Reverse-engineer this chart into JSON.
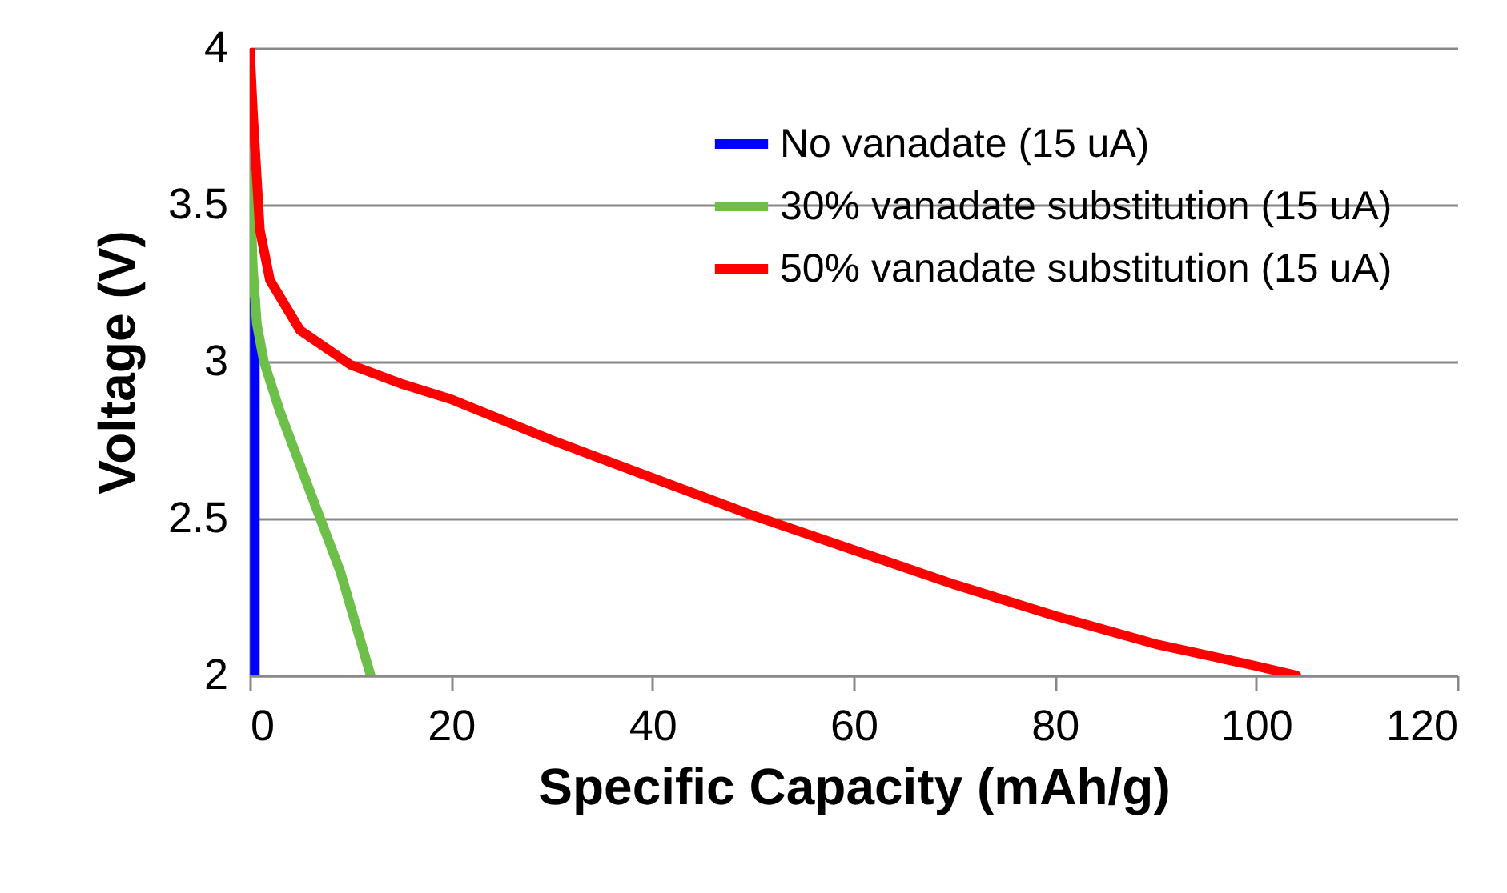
{
  "chart_data": {
    "type": "line",
    "xlabel": "Specific Capacity (mAh/g)",
    "ylabel": "Voltage (V)",
    "xlim": [
      0,
      120
    ],
    "xticks": [
      0,
      20,
      40,
      60,
      80,
      100,
      120
    ],
    "ylim": [
      2,
      4
    ],
    "yticks": [
      2,
      2.5,
      3,
      3.5,
      4
    ],
    "grid": "y",
    "legend": "top right",
    "line_style": "solid",
    "marker": "none",
    "series": [
      {
        "name": "No vanadate (15 uA)",
        "color": "#0000ff",
        "x": [
          0.5,
          0.5
        ],
        "values": [
          3.2,
          2.0
        ]
      },
      {
        "name": "30% vanadate substitution (15 uA)",
        "color": "#6cc04a",
        "x": [
          0,
          0.3,
          0.7,
          1.4,
          3,
          5,
          7,
          9,
          12
        ],
        "values": [
          3.59,
          3.3,
          3.12,
          3.0,
          2.84,
          2.67,
          2.5,
          2.33,
          2.0
        ]
      },
      {
        "name": "50% vanadate substitution (15 uA)",
        "color": "#ff0000",
        "x": [
          0,
          0.3,
          1,
          2,
          5,
          10,
          15,
          20,
          30,
          40,
          50,
          60,
          70,
          80,
          90,
          100,
          104
        ],
        "values": [
          4.0,
          3.8,
          3.42,
          3.26,
          3.1,
          2.99,
          2.93,
          2.88,
          2.75,
          2.63,
          2.51,
          2.4,
          2.29,
          2.19,
          2.1,
          2.03,
          2.0
        ]
      }
    ]
  }
}
